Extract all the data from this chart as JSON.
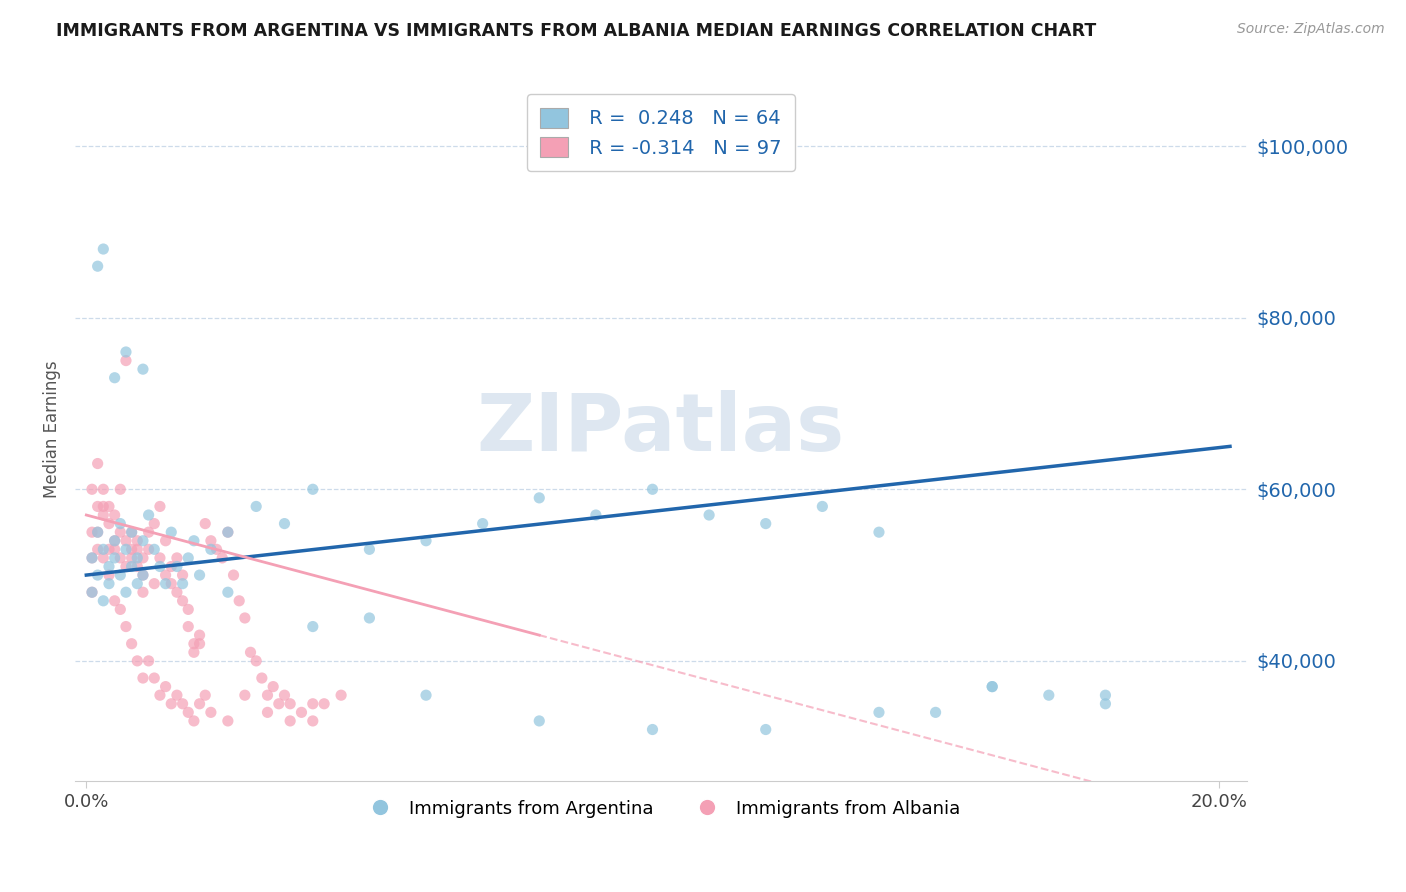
{
  "title": "IMMIGRANTS FROM ARGENTINA VS IMMIGRANTS FROM ALBANIA MEDIAN EARNINGS CORRELATION CHART",
  "source_text": "Source: ZipAtlas.com",
  "ylabel": "Median Earnings",
  "ytick_values": [
    40000,
    60000,
    80000,
    100000
  ],
  "ylim": [
    26000,
    108000
  ],
  "xlim": [
    -0.002,
    0.205
  ],
  "r_argentina": 0.248,
  "n_argentina": 64,
  "r_albania": -0.314,
  "n_albania": 97,
  "color_argentina": "#92c5de",
  "color_albania": "#f4a0b5",
  "trendline_argentina_color": "#2166ac",
  "trendline_albania_color": "#f4a0b5",
  "legend_label_argentina": "Immigrants from Argentina",
  "legend_label_albania": "Immigrants from Albania",
  "watermark": "ZIPatlas",
  "yticklabel_color": "#2166ac",
  "title_color": "#1a1a1a",
  "source_color": "#999999",
  "grid_color": "#c8d8e8",
  "argentina_x": [
    0.001,
    0.001,
    0.002,
    0.002,
    0.003,
    0.003,
    0.004,
    0.004,
    0.005,
    0.005,
    0.006,
    0.006,
    0.007,
    0.007,
    0.008,
    0.008,
    0.009,
    0.009,
    0.01,
    0.01,
    0.011,
    0.012,
    0.013,
    0.014,
    0.015,
    0.016,
    0.017,
    0.018,
    0.019,
    0.02,
    0.022,
    0.025,
    0.03,
    0.035,
    0.04,
    0.05,
    0.06,
    0.07,
    0.08,
    0.09,
    0.1,
    0.11,
    0.12,
    0.13,
    0.14,
    0.15,
    0.16,
    0.17,
    0.18,
    0.025,
    0.04,
    0.05,
    0.06,
    0.08,
    0.1,
    0.12,
    0.14,
    0.16,
    0.18,
    0.002,
    0.003,
    0.005,
    0.007,
    0.01
  ],
  "argentina_y": [
    52000,
    48000,
    55000,
    50000,
    53000,
    47000,
    51000,
    49000,
    54000,
    52000,
    56000,
    50000,
    48000,
    53000,
    55000,
    51000,
    49000,
    52000,
    54000,
    50000,
    57000,
    53000,
    51000,
    49000,
    55000,
    51000,
    49000,
    52000,
    54000,
    50000,
    53000,
    55000,
    58000,
    56000,
    60000,
    53000,
    54000,
    56000,
    59000,
    57000,
    60000,
    57000,
    56000,
    58000,
    55000,
    34000,
    37000,
    36000,
    35000,
    48000,
    44000,
    45000,
    36000,
    33000,
    32000,
    32000,
    34000,
    37000,
    36000,
    86000,
    88000,
    73000,
    76000,
    74000
  ],
  "albania_x": [
    0.001,
    0.001,
    0.001,
    0.002,
    0.002,
    0.002,
    0.003,
    0.003,
    0.003,
    0.004,
    0.004,
    0.004,
    0.005,
    0.005,
    0.005,
    0.006,
    0.006,
    0.006,
    0.007,
    0.007,
    0.007,
    0.008,
    0.008,
    0.008,
    0.009,
    0.009,
    0.009,
    0.01,
    0.01,
    0.01,
    0.011,
    0.011,
    0.012,
    0.012,
    0.013,
    0.013,
    0.014,
    0.014,
    0.015,
    0.015,
    0.016,
    0.016,
    0.017,
    0.017,
    0.018,
    0.018,
    0.019,
    0.019,
    0.02,
    0.02,
    0.021,
    0.022,
    0.023,
    0.024,
    0.025,
    0.026,
    0.027,
    0.028,
    0.029,
    0.03,
    0.031,
    0.032,
    0.033,
    0.034,
    0.035,
    0.036,
    0.038,
    0.04,
    0.042,
    0.045,
    0.001,
    0.002,
    0.003,
    0.004,
    0.005,
    0.006,
    0.007,
    0.008,
    0.009,
    0.01,
    0.011,
    0.012,
    0.013,
    0.014,
    0.015,
    0.016,
    0.017,
    0.018,
    0.019,
    0.02,
    0.021,
    0.022,
    0.025,
    0.028,
    0.032,
    0.036,
    0.04
  ],
  "albania_y": [
    55000,
    52000,
    60000,
    58000,
    63000,
    55000,
    57000,
    52000,
    60000,
    53000,
    56000,
    58000,
    54000,
    57000,
    53000,
    60000,
    55000,
    52000,
    54000,
    51000,
    75000,
    53000,
    52000,
    55000,
    54000,
    53000,
    51000,
    50000,
    52000,
    48000,
    53000,
    55000,
    49000,
    56000,
    52000,
    58000,
    50000,
    54000,
    51000,
    49000,
    48000,
    52000,
    50000,
    47000,
    46000,
    44000,
    42000,
    41000,
    43000,
    42000,
    56000,
    54000,
    53000,
    52000,
    55000,
    50000,
    47000,
    45000,
    41000,
    40000,
    38000,
    36000,
    37000,
    35000,
    36000,
    35000,
    34000,
    33000,
    35000,
    36000,
    48000,
    53000,
    58000,
    50000,
    47000,
    46000,
    44000,
    42000,
    40000,
    38000,
    40000,
    38000,
    36000,
    37000,
    35000,
    36000,
    35000,
    34000,
    33000,
    35000,
    36000,
    34000,
    33000,
    36000,
    34000,
    33000,
    35000
  ]
}
